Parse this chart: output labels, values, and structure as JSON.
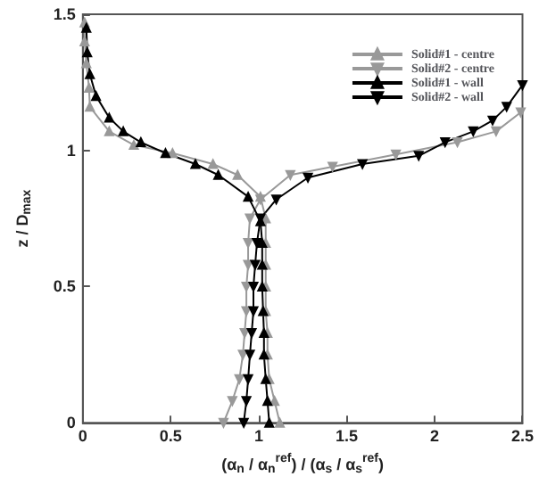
{
  "chart_data": {
    "type": "line",
    "xlabel": "(α$_{n}$ / α$_{n}$$^{ref}$) / (α$_{s}$ / α$_{s}$$^{ref}$)",
    "ylabel": "z / D$_{max}$",
    "xlim": [
      0,
      2.5
    ],
    "xticks": [
      0,
      0.5,
      1,
      1.5,
      2,
      2.5
    ],
    "ylim": [
      0,
      1.5
    ],
    "yticks": [
      0,
      0.5,
      1,
      1.5
    ],
    "grid": false,
    "legend": "top right",
    "series": [
      {
        "name": "Solid#1 - centre",
        "color": "#999999",
        "marker": "triangle",
        "x": [
          0.01,
          0.01,
          0.02,
          0.035,
          0.04,
          0.15,
          0.29,
          0.51,
          0.74,
          0.88,
          1.01,
          1.04,
          1.04,
          1.04,
          1.04,
          1.04,
          1.05,
          1.05,
          1.06,
          1.09,
          1.12
        ],
        "values": [
          1.47,
          1.4,
          1.32,
          1.23,
          1.16,
          1.07,
          1.02,
          0.99,
          0.95,
          0.91,
          0.83,
          0.75,
          0.66,
          0.58,
          0.5,
          0.41,
          0.33,
          0.25,
          0.16,
          0.08,
          0
        ]
      },
      {
        "name": "Solid#2 - centre",
        "color": "#999999",
        "marker": "triangle-down",
        "x": [
          2.49,
          2.35,
          2.13,
          1.78,
          1.42,
          1.18,
          1.01,
          0.95,
          0.94,
          0.94,
          0.93,
          0.93,
          0.92,
          0.91,
          0.89,
          0.85,
          0.8
        ],
        "values": [
          1.14,
          1.07,
          1.03,
          0.985,
          0.94,
          0.91,
          0.82,
          0.75,
          0.66,
          0.58,
          0.5,
          0.41,
          0.33,
          0.25,
          0.16,
          0.08,
          0
        ]
      },
      {
        "name": "Solid#1 - wall",
        "color": "#000000",
        "marker": "triangle",
        "x": [
          0.02,
          0.025,
          0.04,
          0.075,
          0.15,
          0.23,
          0.33,
          0.47,
          0.64,
          0.77,
          0.94,
          1.01,
          1.02,
          1.02,
          1.02,
          1.025,
          1.03,
          1.03,
          1.04,
          1.05,
          1.06
        ],
        "values": [
          1.45,
          1.36,
          1.28,
          1.2,
          1.12,
          1.07,
          1.03,
          0.99,
          0.95,
          0.91,
          0.83,
          0.74,
          0.66,
          0.58,
          0.5,
          0.41,
          0.33,
          0.25,
          0.16,
          0.08,
          0
        ]
      },
      {
        "name": "Solid#2 - wall",
        "color": "#000000",
        "marker": "triangle-down",
        "x": [
          2.5,
          2.41,
          2.33,
          2.22,
          2.06,
          1.91,
          1.59,
          1.28,
          1.1,
          1.01,
          0.99,
          0.98,
          0.97,
          0.97,
          0.96,
          0.95,
          0.94,
          0.93,
          0.915
        ],
        "values": [
          1.24,
          1.16,
          1.11,
          1.07,
          1.03,
          0.98,
          0.95,
          0.9,
          0.82,
          0.75,
          0.66,
          0.58,
          0.5,
          0.41,
          0.33,
          0.25,
          0.16,
          0.08,
          0
        ]
      }
    ]
  }
}
